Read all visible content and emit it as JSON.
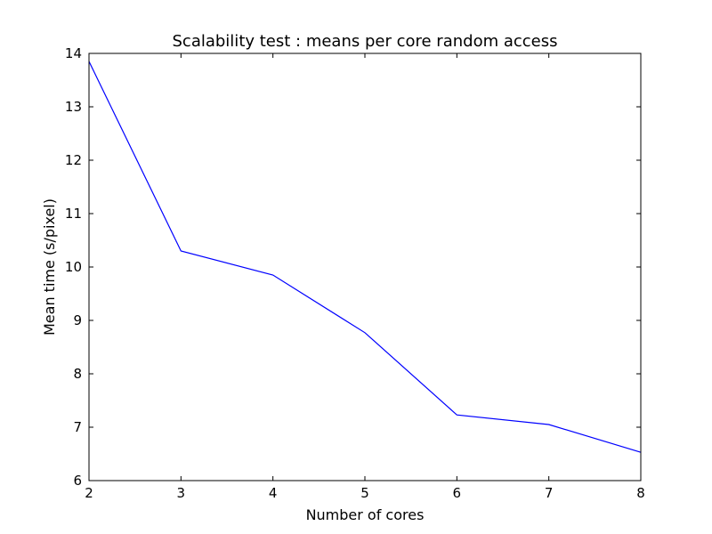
{
  "chart_data": {
    "type": "line",
    "title": "Scalability test : means per core random access",
    "xlabel": "Number of cores",
    "ylabel": "Mean time (s/pixel)",
    "xlim": [
      2,
      8
    ],
    "ylim": [
      6,
      14
    ],
    "x_ticks": [
      "2",
      "3",
      "4",
      "5",
      "6",
      "7",
      "8"
    ],
    "y_ticks": [
      "6",
      "7",
      "8",
      "9",
      "10",
      "11",
      "12",
      "13",
      "14"
    ],
    "grid": false,
    "legend": "none",
    "series": [
      {
        "color": "#0000ff",
        "x": [
          2,
          3,
          4,
          5,
          6,
          7,
          8
        ],
        "y": [
          13.85,
          10.3,
          9.85,
          8.77,
          7.23,
          7.05,
          6.53
        ]
      }
    ]
  }
}
